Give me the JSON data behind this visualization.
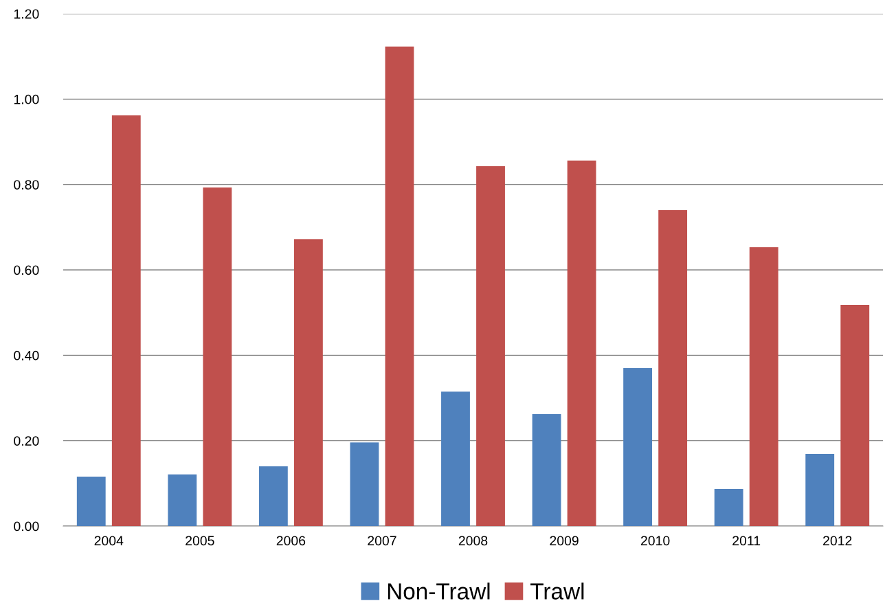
{
  "chart_data": {
    "type": "bar",
    "categories": [
      "2004",
      "2005",
      "2006",
      "2007",
      "2008",
      "2009",
      "2010",
      "2011",
      "2012"
    ],
    "series": [
      {
        "name": "Non-Trawl",
        "color": "#4f81bd",
        "values": [
          0.116,
          0.121,
          0.14,
          0.196,
          0.315,
          0.262,
          0.37,
          0.087,
          0.169
        ]
      },
      {
        "name": "Trawl",
        "color": "#c0504d",
        "values": [
          0.962,
          0.793,
          0.672,
          1.123,
          0.843,
          0.856,
          0.74,
          0.653,
          0.518
        ]
      }
    ],
    "ylim": [
      0,
      1.2
    ],
    "yticks": [
      {
        "value": 0,
        "label": "0.00"
      },
      {
        "value": 0.2,
        "label": "0.20"
      },
      {
        "value": 0.4,
        "label": "0.40"
      },
      {
        "value": 0.6,
        "label": "0.60"
      },
      {
        "value": 0.8,
        "label": "0.80"
      },
      {
        "value": 1.0,
        "label": "1.00"
      },
      {
        "value": 1.2,
        "label": "1.20"
      }
    ],
    "grid": "y",
    "legend": "bottom"
  }
}
